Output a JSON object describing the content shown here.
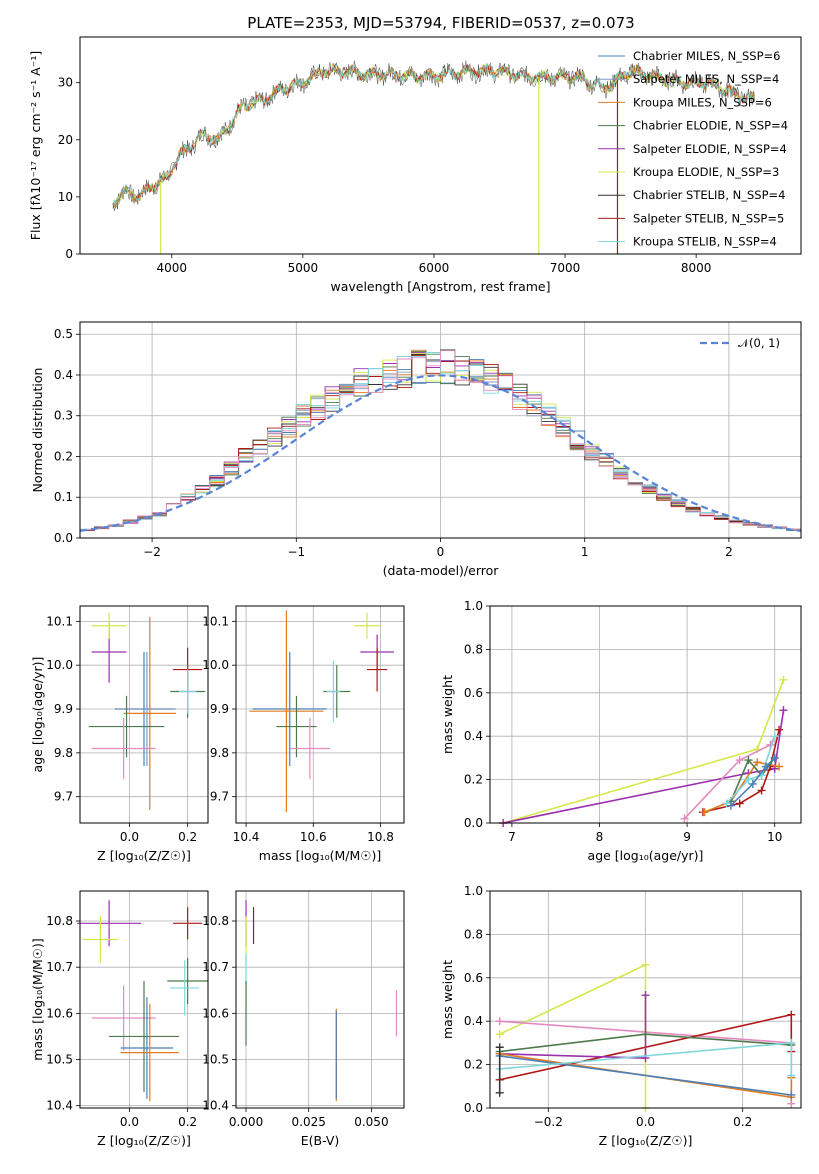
{
  "title": "PLATE=2353, MJD=53794, FIBERID=0537, z=0.073",
  "colors": {
    "chabrier_miles": "#4c7fb5",
    "salpeter_miles": "#7f9abf",
    "kroupa_miles": "#e07b22",
    "chabrier_elodie": "#4d7a4d",
    "salpeter_elodie": "#9b30b0",
    "kroupa_elodie": "#d5e84a",
    "chabrier_stelib": "#333333",
    "salpeter_stelib": "#b01818",
    "kroupa_stelib": "#7fd6dc",
    "pink": "#e48ac0",
    "normal": "#5b84d6",
    "grid": "#b0b0b0"
  },
  "chart_data": [
    {
      "type": "line",
      "title": "PLATE=2353, MJD=53794, FIBERID=0537, z=0.073",
      "xlabel": "wavelength [Angstrom, rest frame]",
      "ylabel": "Flux [fλ10⁻¹⁷ erg cm⁻² s⁻¹ A⁻¹]",
      "xlim": [
        3300,
        8800
      ],
      "ylim": [
        0,
        38
      ],
      "xticks": [
        "4000",
        "5000",
        "6000",
        "7000",
        "8000"
      ],
      "yticks": [
        "0",
        "10",
        "20",
        "30"
      ],
      "legend_position": "top-right",
      "legend": [
        "Chabrier MILES, N_SSP=6",
        "Salpeter MILES, N_SSP=4",
        "Kroupa MILES, N_SSP=6",
        "Chabrier ELODIE, N_SSP=4",
        "Salpeter ELODIE, N_SSP=4",
        "Kroupa ELODIE, N_SSP=3",
        "Chabrier STELIB, N_SSP=4",
        "Salpeter STELIB, N_SSP=5",
        "Kroupa STELIB, N_SSP=4"
      ],
      "spectrum_trend": {
        "x": [
          3550,
          3650,
          3750,
          3850,
          3950,
          4050,
          4150,
          4250,
          4350,
          4450,
          4550,
          4700,
          4850,
          5000,
          5150,
          5300,
          5500,
          5700,
          5900,
          6100,
          6300,
          6500,
          6700,
          6900,
          7100,
          7300,
          7500,
          7700,
          7900,
          8100,
          8300,
          8450
        ],
        "y": [
          9,
          11,
          10,
          12,
          13,
          17,
          19,
          21,
          20,
          23,
          26,
          27,
          29,
          30,
          32,
          32,
          31.5,
          31.5,
          31,
          31.5,
          32,
          32,
          31,
          31,
          31,
          29,
          32,
          31,
          30,
          30,
          28,
          27
        ]
      }
    },
    {
      "type": "step",
      "xlabel": "(data-model)/error",
      "ylabel": "Normed distribution",
      "xlim": [
        -2.5,
        2.5
      ],
      "ylim": [
        0,
        0.53
      ],
      "xticks": [
        "−2",
        "−1",
        "0",
        "1",
        "2"
      ],
      "yticks": [
        "0.0",
        "0.1",
        "0.2",
        "0.3",
        "0.4",
        "0.5"
      ],
      "legend": [
        "𝒩(0, 1)"
      ],
      "legend_position": "top-right",
      "histogram_centers": [
        -2.45,
        -2.35,
        -2.25,
        -2.15,
        -2.05,
        -1.95,
        -1.85,
        -1.75,
        -1.65,
        -1.55,
        -1.45,
        -1.35,
        -1.25,
        -1.15,
        -1.05,
        -0.95,
        -0.85,
        -0.75,
        -0.65,
        -0.55,
        -0.45,
        -0.35,
        -0.25,
        -0.15,
        -0.05,
        0.05,
        0.15,
        0.25,
        0.35,
        0.45,
        0.55,
        0.65,
        0.75,
        0.85,
        0.95,
        1.05,
        1.15,
        1.25,
        1.35,
        1.45,
        1.55,
        1.65,
        1.75,
        1.85,
        1.95,
        2.05,
        2.15,
        2.25,
        2.35,
        2.45
      ],
      "histogram_heights": [
        0.02,
        0.025,
        0.03,
        0.04,
        0.05,
        0.06,
        0.08,
        0.1,
        0.12,
        0.14,
        0.17,
        0.2,
        0.22,
        0.25,
        0.27,
        0.3,
        0.32,
        0.34,
        0.36,
        0.38,
        0.39,
        0.4,
        0.41,
        0.42,
        0.42,
        0.42,
        0.41,
        0.4,
        0.39,
        0.37,
        0.35,
        0.33,
        0.3,
        0.27,
        0.24,
        0.21,
        0.19,
        0.16,
        0.14,
        0.12,
        0.1,
        0.085,
        0.07,
        0.06,
        0.05,
        0.04,
        0.035,
        0.03,
        0.025,
        0.02
      ]
    },
    {
      "type": "scatter",
      "xlabel": "Z [log₁₀(Z/Z☉)]",
      "ylabel": "age  [log₁₀(age/yr)]",
      "xlim": [
        -0.17,
        0.27
      ],
      "ylim": [
        9.64,
        10.135
      ],
      "xticks": [
        "0.0",
        "0.2"
      ],
      "yticks": [
        "9.7",
        "9.8",
        "9.9",
        "10.0",
        "10.1"
      ],
      "points": [
        {
          "x": 0.05,
          "y": 9.9,
          "xerr": 0.1,
          "yerr": 0.13,
          "color": "#4c7fb5"
        },
        {
          "x": 0.06,
          "y": 9.9,
          "xerr": 0.1,
          "yerr": 0.13,
          "color": "#7f9abf"
        },
        {
          "x": 0.07,
          "y": 9.89,
          "xerr": 0.09,
          "yerr": 0.22,
          "color": "#e07b22"
        },
        {
          "x": -0.01,
          "y": 9.86,
          "xerr": 0.13,
          "yerr": 0.07,
          "color": "#4d7a4d"
        },
        {
          "x": -0.07,
          "y": 10.03,
          "xerr": 0.06,
          "yerr": 0.07,
          "color": "#9b30b0"
        },
        {
          "x": -0.07,
          "y": 10.09,
          "xerr": 0.06,
          "yerr": 0.03,
          "color": "#d5e84a"
        },
        {
          "x": 0.2,
          "y": 9.99,
          "xerr": 0.05,
          "yerr": 0.05,
          "color": "#b01818"
        },
        {
          "x": 0.2,
          "y": 9.94,
          "xerr": 0.06,
          "yerr": 0.06,
          "color": "#4d7a4d"
        },
        {
          "x": 0.2,
          "y": 9.94,
          "xerr": 0.03,
          "yerr": 0.05,
          "color": "#7fd6dc"
        },
        {
          "x": -0.02,
          "y": 9.81,
          "xerr": 0.11,
          "yerr": 0.07,
          "color": "#e48ac0"
        }
      ]
    },
    {
      "type": "scatter",
      "xlabel": "mass [log₁₀(M/M☉)]",
      "xlim": [
        10.37,
        10.87
      ],
      "ylim": [
        9.64,
        10.135
      ],
      "xticks": [
        "10.4",
        "10.6",
        "10.8"
      ],
      "yticks": [
        "9.7",
        "9.8",
        "9.9",
        "10.0",
        "10.1"
      ],
      "points": [
        {
          "x": 10.53,
          "y": 9.9,
          "xerr": 0.11,
          "yerr": 0.13,
          "color": "#4c7fb5"
        },
        {
          "x": 10.52,
          "y": 9.895,
          "xerr": 0.11,
          "yerr": 0.23,
          "color": "#e07b22"
        },
        {
          "x": 10.55,
          "y": 9.86,
          "xerr": 0.06,
          "yerr": 0.07,
          "color": "#4d7a4d"
        },
        {
          "x": 10.79,
          "y": 10.03,
          "xerr": 0.05,
          "yerr": 0.04,
          "color": "#9b30b0"
        },
        {
          "x": 10.76,
          "y": 10.09,
          "xerr": 0.04,
          "yerr": 0.03,
          "color": "#d5e84a"
        },
        {
          "x": 10.79,
          "y": 9.99,
          "xerr": 0.03,
          "yerr": 0.05,
          "color": "#b01818"
        },
        {
          "x": 10.67,
          "y": 9.94,
          "xerr": 0.04,
          "yerr": 0.06,
          "color": "#4d7a4d"
        },
        {
          "x": 10.66,
          "y": 9.94,
          "xerr": 0.02,
          "yerr": 0.07,
          "color": "#7fd6dc"
        },
        {
          "x": 10.59,
          "y": 9.81,
          "xerr": 0.06,
          "yerr": 0.07,
          "color": "#e48ac0"
        }
      ]
    },
    {
      "type": "line",
      "xlabel": "age  [log₁₀(age/yr)]",
      "ylabel": "mass weight",
      "xlim": [
        6.75,
        10.3
      ],
      "ylim": [
        0,
        1.0
      ],
      "xticks": [
        "7",
        "8",
        "9",
        "10"
      ],
      "yticks": [
        "0.0",
        "0.2",
        "0.4",
        "0.6",
        "0.8",
        "1.0"
      ],
      "series": [
        {
          "color": "#d5e84a",
          "x": [
            6.9,
            9.8,
            10.1
          ],
          "y": [
            0.0,
            0.34,
            0.66
          ]
        },
        {
          "color": "#9b30b0",
          "x": [
            6.9,
            9.7,
            10.0,
            10.1
          ],
          "y": [
            0.0,
            0.23,
            0.25,
            0.52
          ]
        },
        {
          "color": "#e48ac0",
          "x": [
            8.97,
            9.6,
            9.95,
            10.0
          ],
          "y": [
            0.02,
            0.29,
            0.36,
            0.4
          ]
        },
        {
          "color": "#b01818",
          "x": [
            9.18,
            9.6,
            9.85,
            9.95,
            10.05
          ],
          "y": [
            0.05,
            0.09,
            0.15,
            0.26,
            0.43
          ]
        },
        {
          "color": "#e07b22",
          "x": [
            9.2,
            9.5,
            9.8,
            10.05
          ],
          "y": [
            0.05,
            0.1,
            0.28,
            0.26
          ]
        },
        {
          "color": "#4d7a4d",
          "x": [
            9.5,
            9.7,
            9.85,
            10.0
          ],
          "y": [
            0.1,
            0.29,
            0.22,
            0.3
          ]
        },
        {
          "color": "#7fd6dc",
          "x": [
            9.45,
            9.7,
            9.85,
            10.0
          ],
          "y": [
            0.09,
            0.2,
            0.22,
            0.4
          ]
        },
        {
          "color": "#4c7fb5",
          "x": [
            9.5,
            9.75,
            9.9,
            10.0
          ],
          "y": [
            0.08,
            0.18,
            0.26,
            0.3
          ]
        }
      ]
    },
    {
      "type": "scatter",
      "xlabel": "Z [log₁₀(Z/Z☉)]",
      "ylabel": "mass [log₁₀(M/M☉)]",
      "xlim": [
        -0.17,
        0.27
      ],
      "ylim": [
        10.395,
        10.865
      ],
      "xticks": [
        "0.0",
        "0.2"
      ],
      "yticks": [
        "10.4",
        "10.5",
        "10.6",
        "10.7",
        "10.8"
      ],
      "points": [
        {
          "x": -0.07,
          "y": 10.795,
          "xerr": 0.11,
          "yerr": 0.05,
          "color": "#9b30b0"
        },
        {
          "x": -0.1,
          "y": 10.76,
          "xerr": 0.06,
          "yerr": 0.05,
          "color": "#d5e84a"
        },
        {
          "x": 0.2,
          "y": 10.795,
          "xerr": 0.05,
          "yerr": 0.035,
          "color": "#b01818"
        },
        {
          "x": 0.2,
          "y": 10.67,
          "xerr": 0.07,
          "yerr": 0.05,
          "color": "#4d7a4d"
        },
        {
          "x": 0.19,
          "y": 10.655,
          "xerr": 0.05,
          "yerr": 0.06,
          "color": "#7fd6dc"
        },
        {
          "x": -0.02,
          "y": 10.59,
          "xerr": 0.11,
          "yerr": 0.07,
          "color": "#e48ac0"
        },
        {
          "x": 0.05,
          "y": 10.55,
          "xerr": 0.12,
          "yerr": 0.12,
          "color": "#4d7a4d"
        },
        {
          "x": 0.06,
          "y": 10.525,
          "xerr": 0.09,
          "yerr": 0.11,
          "color": "#4c7fb5"
        },
        {
          "x": 0.07,
          "y": 10.515,
          "xerr": 0.1,
          "yerr": 0.105,
          "color": "#e07b22"
        }
      ]
    },
    {
      "type": "scatter",
      "xlabel": "E(B-V)",
      "xlim": [
        -0.004,
        0.063
      ],
      "ylim": [
        10.395,
        10.865
      ],
      "xticks": [
        "0.000",
        "0.025",
        "0.050"
      ],
      "yticks": [
        "10.4",
        "10.5",
        "10.6",
        "10.7",
        "10.8"
      ],
      "points": [
        {
          "x": 0.0,
          "y": 10.795,
          "yerr": 0.05,
          "color": "#9b30b0"
        },
        {
          "x": 0.0,
          "y": 10.76,
          "yerr": 0.05,
          "color": "#d5e84a"
        },
        {
          "x": 0.003,
          "y": 10.79,
          "yerr": 0.04,
          "color": "#b01818"
        },
        {
          "x": 0.0,
          "y": 10.67,
          "yerr": 0.06,
          "color": "#7fd6dc"
        },
        {
          "x": 0.0,
          "y": 10.6,
          "yerr": 0.07,
          "color": "#4d7a4d"
        },
        {
          "x": 0.036,
          "y": 10.51,
          "yerr": 0.1,
          "color": "#e07b22"
        },
        {
          "x": 0.036,
          "y": 10.51,
          "yerr": 0.095,
          "color": "#4c7fb5"
        },
        {
          "x": 0.06,
          "y": 10.6,
          "yerr": 0.05,
          "color": "#e48ac0"
        }
      ]
    },
    {
      "type": "line",
      "xlabel": "Z [log₁₀(Z/Z☉)]",
      "ylabel": "mass weight",
      "xlim": [
        -0.32,
        0.32
      ],
      "ylim": [
        0,
        1.0
      ],
      "xticks": [
        "−0.2",
        "0.0",
        "0.2"
      ],
      "yticks": [
        "0.0",
        "0.2",
        "0.4",
        "0.6",
        "0.8",
        "1.0"
      ],
      "series": [
        {
          "color": "#d5e84a",
          "x": [
            -0.3,
            0.0,
            0.0
          ],
          "y": [
            0.34,
            0.66,
            0.0
          ]
        },
        {
          "color": "#e48ac0",
          "x": [
            -0.3,
            0.3,
            0.3
          ],
          "y": [
            0.4,
            0.3,
            0.02
          ]
        },
        {
          "color": "#b01818",
          "x": [
            -0.3,
            0.3,
            0.3
          ],
          "y": [
            0.13,
            0.43,
            0.26
          ]
        },
        {
          "color": "#9b30b0",
          "x": [
            -0.3,
            0.0,
            0.0
          ],
          "y": [
            0.25,
            0.23,
            0.52
          ]
        },
        {
          "color": "#4d7a4d",
          "x": [
            -0.3,
            0.0,
            0.3
          ],
          "y": [
            0.26,
            0.34,
            0.29
          ]
        },
        {
          "color": "#e07b22",
          "x": [
            -0.3,
            0.3,
            0.3
          ],
          "y": [
            0.25,
            0.05,
            0.14
          ]
        },
        {
          "color": "#4c7fb5",
          "x": [
            -0.3,
            0.3
          ],
          "y": [
            0.24,
            0.06
          ]
        },
        {
          "color": "#7fd6dc",
          "x": [
            -0.3,
            0.3,
            0.3
          ],
          "y": [
            0.18,
            0.3,
            0.15
          ]
        },
        {
          "color": "#333333",
          "x": [
            -0.3,
            -0.3
          ],
          "y": [
            0.07,
            0.28
          ]
        }
      ]
    }
  ]
}
